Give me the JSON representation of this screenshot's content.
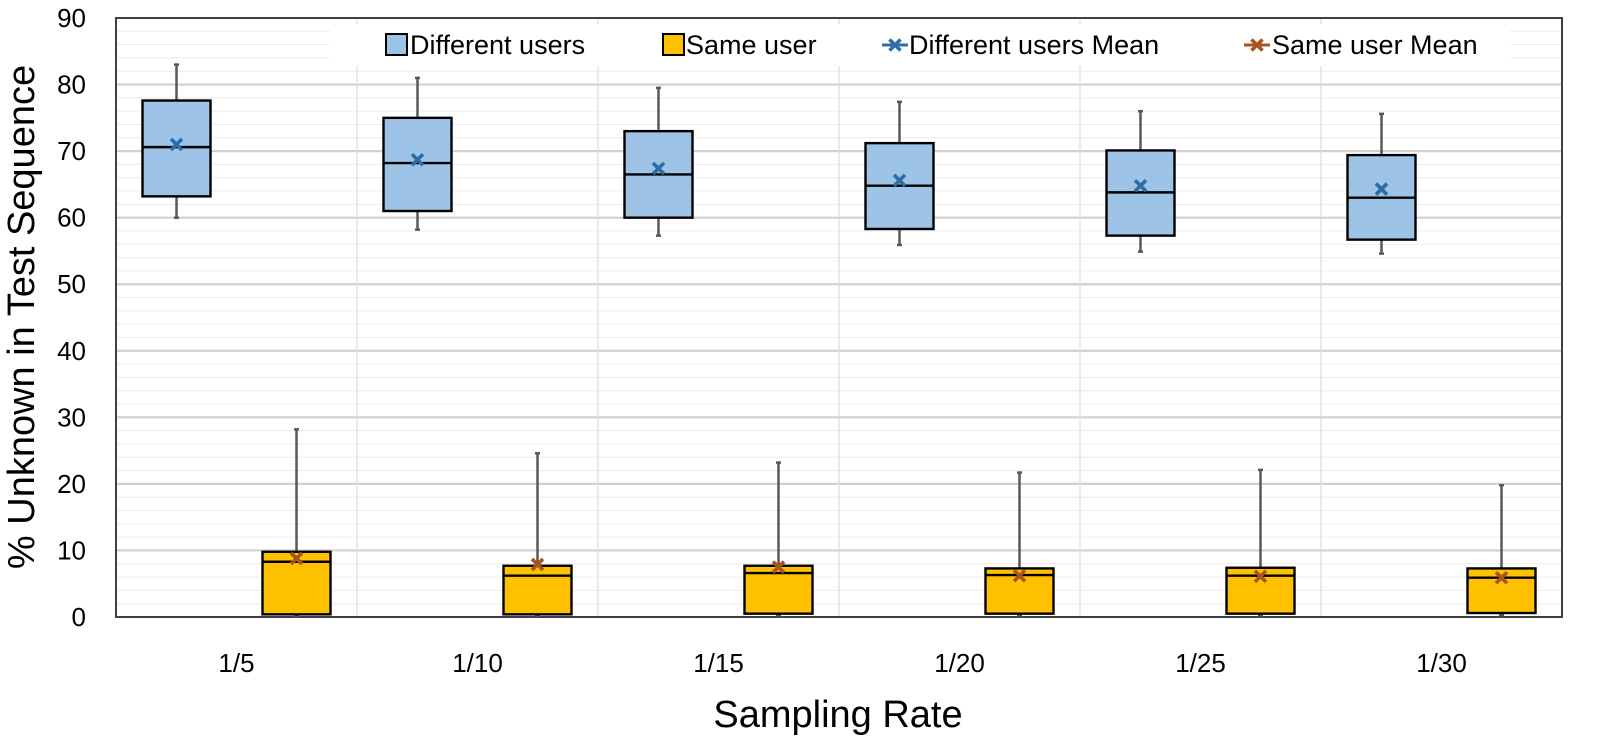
{
  "chart_data": {
    "type": "boxplot",
    "title": "",
    "xlabel": "Sampling Rate",
    "ylabel": "% Unknown in Test Sequence",
    "ylim": [
      0,
      90
    ],
    "yticks": [
      "0",
      "10",
      "20",
      "30",
      "40",
      "50",
      "60",
      "70",
      "80",
      "90"
    ],
    "categories": [
      "1/5",
      "1/10",
      "1/15",
      "1/20",
      "1/25",
      "1/30"
    ],
    "grid": "horizontal major and minor, vertical category separators",
    "legend_position": "top",
    "series": [
      {
        "name": "Different users",
        "mean_name": "Different users Mean",
        "fill": "#9DC3E6",
        "mean_color": "#2E6DA4",
        "boxes": [
          {
            "min": 60.0,
            "q1": 63.2,
            "median": 70.6,
            "q3": 77.6,
            "max": 83.0,
            "mean": 71.0
          },
          {
            "min": 58.2,
            "q1": 61.0,
            "median": 68.2,
            "q3": 75.0,
            "max": 81.0,
            "mean": 68.7
          },
          {
            "min": 57.3,
            "q1": 60.0,
            "median": 66.5,
            "q3": 73.0,
            "max": 79.5,
            "mean": 67.4
          },
          {
            "min": 55.9,
            "q1": 58.3,
            "median": 64.8,
            "q3": 71.2,
            "max": 77.4,
            "mean": 65.6
          },
          {
            "min": 54.9,
            "q1": 57.3,
            "median": 63.8,
            "q3": 70.1,
            "max": 76.0,
            "mean": 64.8
          },
          {
            "min": 54.6,
            "q1": 56.7,
            "median": 63.0,
            "q3": 69.4,
            "max": 75.6,
            "mean": 64.3
          }
        ]
      },
      {
        "name": "Same user",
        "mean_name": "Same user Mean",
        "fill": "#FFC000",
        "mean_color": "#A8541E",
        "boxes": [
          {
            "min": 0.2,
            "q1": 0.4,
            "median": 8.3,
            "q3": 9.8,
            "max": 28.2,
            "mean": 8.8
          },
          {
            "min": 0.2,
            "q1": 0.4,
            "median": 6.2,
            "q3": 7.7,
            "max": 24.6,
            "mean": 7.9
          },
          {
            "min": 0.3,
            "q1": 0.5,
            "median": 6.6,
            "q3": 7.7,
            "max": 23.2,
            "mean": 7.5
          },
          {
            "min": 0.3,
            "q1": 0.5,
            "median": 6.3,
            "q3": 7.3,
            "max": 21.7,
            "mean": 6.2
          },
          {
            "min": 0.3,
            "q1": 0.5,
            "median": 6.2,
            "q3": 7.4,
            "max": 22.1,
            "mean": 6.1
          },
          {
            "min": 0.3,
            "q1": 0.6,
            "median": 5.9,
            "q3": 7.3,
            "max": 19.8,
            "mean": 5.9
          }
        ]
      }
    ]
  }
}
